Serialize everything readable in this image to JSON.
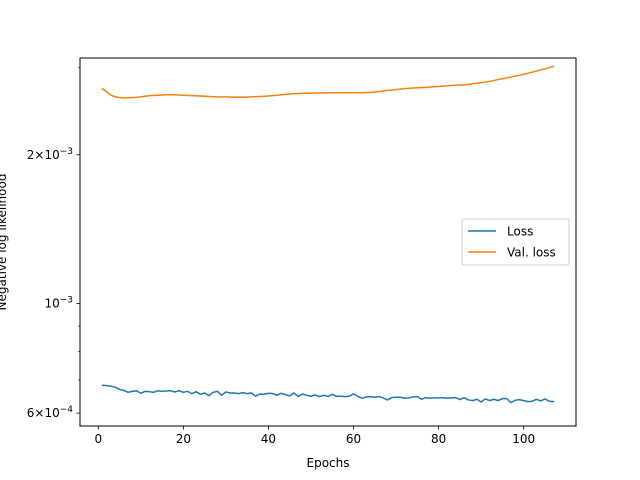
{
  "chart_data": {
    "type": "line",
    "title": "",
    "xlabel": "Epochs",
    "ylabel": "Negative log likelihood",
    "xscale": "linear",
    "yscale": "log",
    "xlim": [
      -4.3,
      112.3
    ],
    "ylim": [
      0.000565,
      0.00314
    ],
    "x_ticks": [
      0,
      20,
      40,
      60,
      80,
      100
    ],
    "x_tick_labels": [
      "0",
      "20",
      "40",
      "60",
      "80",
      "100"
    ],
    "y_ticks": [
      0.0006,
      0.001,
      0.002
    ],
    "y_tick_labels": [
      {
        "mant": "6×10",
        "exp": "−4"
      },
      {
        "mant": "10",
        "exp": "−3"
      },
      {
        "mant": "2×10",
        "exp": "−3"
      }
    ],
    "grid": false,
    "legend_position": "center-right",
    "series": [
      {
        "name": "Loss",
        "color": "#1f77b4",
        "x": [
          1,
          2,
          3,
          4,
          5,
          6,
          7,
          8,
          9,
          10,
          11,
          12,
          13,
          14,
          15,
          16,
          17,
          18,
          19,
          20,
          21,
          22,
          23,
          24,
          25,
          26,
          27,
          28,
          29,
          30,
          31,
          32,
          33,
          34,
          35,
          36,
          37,
          38,
          39,
          40,
          41,
          42,
          43,
          44,
          45,
          46,
          47,
          48,
          49,
          50,
          51,
          52,
          53,
          54,
          55,
          56,
          57,
          58,
          59,
          60,
          61,
          62,
          63,
          64,
          65,
          66,
          67,
          68,
          69,
          70,
          71,
          72,
          73,
          74,
          75,
          76,
          77,
          78,
          79,
          80,
          81,
          82,
          83,
          84,
          85,
          86,
          87,
          88,
          89,
          90,
          91,
          92,
          93,
          94,
          95,
          96,
          97,
          98,
          99,
          100,
          101,
          102,
          103,
          104,
          105,
          106,
          107
        ],
        "values": [
          0.000683,
          0.000682,
          0.00068,
          0.000677,
          0.00067,
          0.000667,
          0.000661,
          0.000664,
          0.000666,
          0.000658,
          0.000664,
          0.000663,
          0.000661,
          0.000666,
          0.000664,
          0.000665,
          0.000666,
          0.000662,
          0.000666,
          0.000661,
          0.000664,
          0.000657,
          0.000663,
          0.000655,
          0.000659,
          0.000651,
          0.000661,
          0.000664,
          0.000652,
          0.000662,
          0.000659,
          0.000659,
          0.000657,
          0.00066,
          0.000657,
          0.000659,
          0.000649,
          0.000656,
          0.000655,
          0.000658,
          0.000657,
          0.000652,
          0.000658,
          0.000654,
          0.00065,
          0.000659,
          0.000648,
          0.000656,
          0.000652,
          0.000649,
          0.000653,
          0.000648,
          0.000652,
          0.000648,
          0.000655,
          0.000649,
          0.000649,
          0.000648,
          0.000649,
          0.000656,
          0.000649,
          0.000643,
          0.000647,
          0.000648,
          0.000646,
          0.000648,
          0.000644,
          0.000638,
          0.000645,
          0.000646,
          0.000646,
          0.000643,
          0.000644,
          0.000647,
          0.000648,
          0.00064,
          0.000645,
          0.000643,
          0.000644,
          0.000644,
          0.000645,
          0.000643,
          0.000644,
          0.000645,
          0.000639,
          0.000645,
          0.000638,
          0.000636,
          0.00064,
          0.000632,
          0.000641,
          0.000636,
          0.00064,
          0.000636,
          0.000642,
          0.000642,
          0.00063,
          0.000637,
          0.000639,
          0.000636,
          0.000633,
          0.000634,
          0.00064,
          0.000635,
          0.000641,
          0.000634,
          0.000633
        ]
      },
      {
        "name": "Val. loss",
        "color": "#ff7f0e",
        "x": [
          1,
          2,
          3,
          4,
          5,
          6,
          7,
          8,
          9,
          10,
          12,
          14,
          16,
          18,
          20,
          22,
          24,
          26,
          28,
          30,
          32,
          34,
          36,
          38,
          40,
          42,
          44,
          46,
          48,
          50,
          52,
          54,
          56,
          58,
          60,
          62,
          64,
          66,
          68,
          70,
          72,
          74,
          76,
          78,
          80,
          82,
          84,
          86,
          88,
          90,
          92,
          94,
          96,
          98,
          100,
          102,
          104,
          106,
          107
        ],
        "values": [
          0.00272,
          0.00268,
          0.00264,
          0.00262,
          0.00261,
          0.002605,
          0.00261,
          0.00261,
          0.002615,
          0.00262,
          0.002635,
          0.00264,
          0.002645,
          0.002645,
          0.00264,
          0.002635,
          0.00263,
          0.002625,
          0.00262,
          0.00262,
          0.002615,
          0.002615,
          0.00262,
          0.002625,
          0.00263,
          0.00264,
          0.00265,
          0.00266,
          0.002665,
          0.002665,
          0.002668,
          0.00267,
          0.00267,
          0.00267,
          0.00267,
          0.002672,
          0.002675,
          0.002685,
          0.0027,
          0.00271,
          0.002722,
          0.00273,
          0.002735,
          0.002742,
          0.00275,
          0.002757,
          0.002765,
          0.00277,
          0.002785,
          0.0028,
          0.002815,
          0.00284,
          0.002862,
          0.002885,
          0.00291,
          0.00294,
          0.00297,
          0.003,
          0.00302
        ]
      }
    ]
  }
}
